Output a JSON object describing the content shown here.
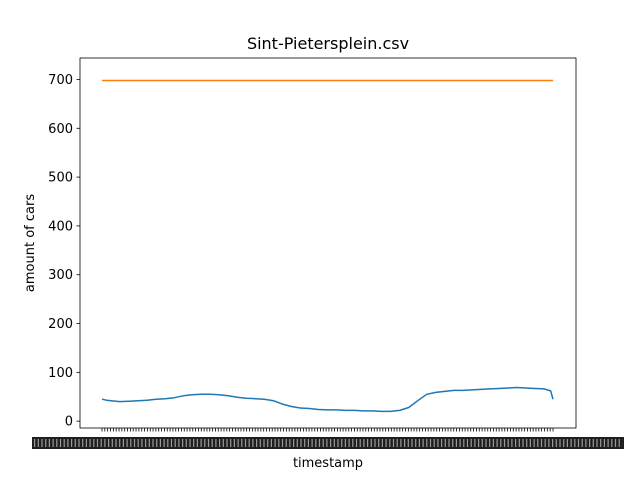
{
  "chart_data": {
    "type": "line",
    "title": "Sint-Pietersplein.csv",
    "xlabel": "timestamp",
    "ylabel": "amount of cars",
    "ylim": [
      -14,
      744
    ],
    "yticks": [
      0,
      100,
      200,
      300,
      400,
      500,
      600,
      700
    ],
    "x_tick_labels_legible": false,
    "grid": false,
    "series": [
      {
        "color": "#1f77b4",
        "x": [
          0,
          0.01,
          0.02,
          0.04,
          0.06,
          0.08,
          0.1,
          0.12,
          0.14,
          0.16,
          0.18,
          0.2,
          0.22,
          0.24,
          0.26,
          0.28,
          0.3,
          0.32,
          0.34,
          0.36,
          0.38,
          0.4,
          0.42,
          0.44,
          0.46,
          0.48,
          0.5,
          0.52,
          0.54,
          0.56,
          0.58,
          0.6,
          0.62,
          0.64,
          0.66,
          0.68,
          0.7,
          0.72,
          0.74,
          0.76,
          0.78,
          0.8,
          0.82,
          0.84,
          0.86,
          0.88,
          0.9,
          0.92,
          0.94,
          0.96,
          0.98,
          0.995,
          1.0
        ],
        "values": [
          45,
          43,
          42,
          40,
          41,
          42,
          43,
          45,
          46,
          48,
          52,
          54,
          55,
          55,
          54,
          52,
          49,
          47,
          46,
          45,
          42,
          35,
          30,
          27,
          26,
          24,
          23,
          23,
          22,
          22,
          21,
          21,
          20,
          20,
          22,
          28,
          42,
          55,
          59,
          61,
          63,
          63,
          64,
          65,
          66,
          67,
          68,
          69,
          68,
          67,
          66,
          62,
          45
        ]
      },
      {
        "color": "#ff7f0e",
        "x": [
          0,
          1
        ],
        "values": [
          698,
          698
        ]
      }
    ]
  }
}
